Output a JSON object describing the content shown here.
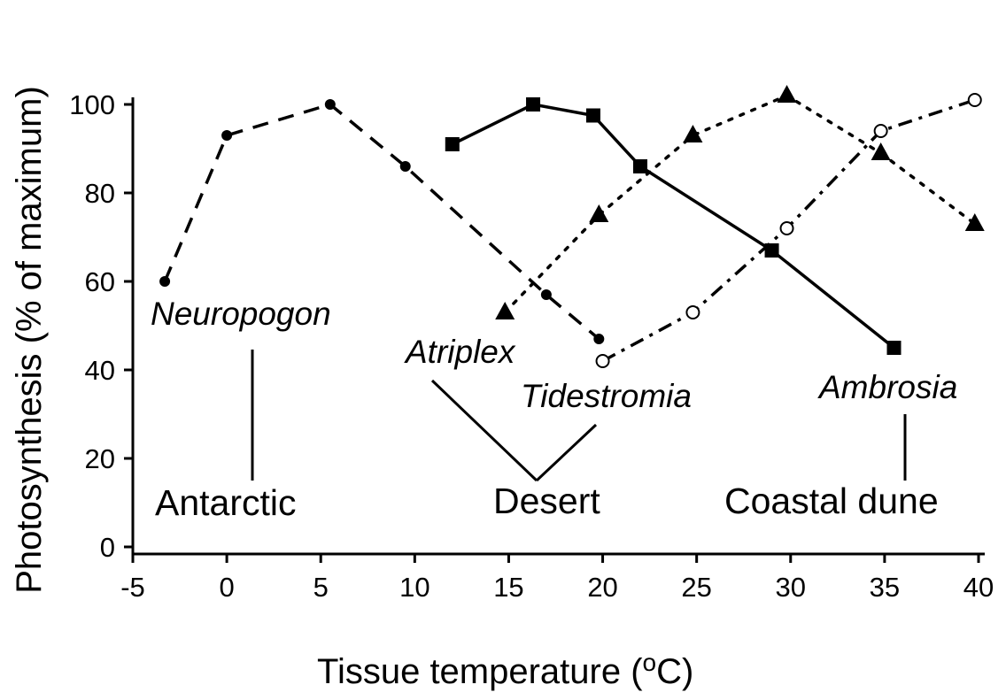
{
  "chart_data": {
    "type": "line",
    "xlabel": "Tissue temperature (",
    "xlabel_sup": "o",
    "xlabel_end": "C)",
    "ylabel": "Photosynthesis (% of maximum)",
    "xlim": [
      -5,
      40
    ],
    "ylim": [
      0,
      100
    ],
    "xticks": [
      -5,
      0,
      5,
      10,
      15,
      20,
      25,
      30,
      35,
      40
    ],
    "yticks": [
      0,
      20,
      40,
      60,
      80,
      100
    ],
    "grid": false,
    "series": [
      {
        "name": "Neuropogon",
        "line": "dashed",
        "marker": "small-filled-circle",
        "x": [
          -3.3,
          0,
          5.5,
          9.5,
          17,
          19.8
        ],
        "y": [
          60,
          93,
          100,
          86,
          57,
          47
        ]
      },
      {
        "name": "Atriplex",
        "line": "solid",
        "marker": "filled-square",
        "x": [
          12,
          16.3,
          19.5,
          22,
          29,
          35.5
        ],
        "y": [
          91,
          100,
          97.5,
          86,
          67,
          45
        ]
      },
      {
        "name": "Tidestromia",
        "line": "dotted",
        "marker": "filled-triangle",
        "x": [
          14.8,
          19.8,
          24.8,
          29.8,
          34.8,
          39.8
        ],
        "y": [
          53,
          75,
          93,
          102,
          89,
          73
        ]
      },
      {
        "name": "Ambrosia",
        "line": "dash-dot",
        "marker": "open-circle",
        "x": [
          20,
          24.8,
          29.8,
          34.8,
          39.8
        ],
        "y": [
          42,
          53,
          72,
          94,
          101
        ]
      }
    ],
    "annotations": {
      "habitats": [
        "Antarctic",
        "Desert",
        "Coastal dune"
      ]
    }
  }
}
